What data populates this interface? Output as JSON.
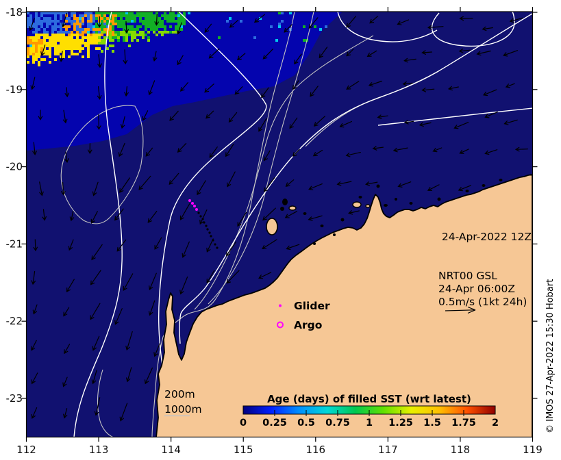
{
  "axes": {
    "x_tick_labels": [
      "112",
      "113",
      "114",
      "115",
      "116",
      "117",
      "118",
      "119"
    ],
    "y_tick_labels": [
      "-18",
      "-19",
      "-20",
      "-21",
      "-22",
      "-23"
    ]
  },
  "annotations": {
    "timestamp": "24-Apr-2022 12Z",
    "nrt_line1": "NRT00 GSL",
    "nrt_line2": "24-Apr 06:00Z",
    "nrt_line3": "0.5m/s (1kt 24h)"
  },
  "marker_legend": {
    "glider_label": "Glider",
    "argo_label": "Argo"
  },
  "depth_legend": {
    "d200": "200m",
    "d1000": "1000m"
  },
  "colorbar": {
    "title": "Age (days) of filled SST (wrt latest)",
    "tick_labels": [
      "0",
      "0.25",
      "0.5",
      "0.75",
      "1",
      "1.25",
      "1.5",
      "1.75",
      "2"
    ]
  },
  "credit": "© IMOS 27-Apr-2022 15:30 Hobart",
  "colors": {
    "land": "#f6c795",
    "ocean_old": "#111170",
    "ocean_recent": "#0404ae",
    "contour_gsl": "#ffffff",
    "contour_bathy": "#c4c4c4",
    "vectors": "#000000",
    "glider_magenta": "#ff00ff",
    "sst_age_palette": [
      "#2d6cdf",
      "#00c8f0",
      "#12b025",
      "#86d900",
      "#ffdf00",
      "#ff9a00"
    ],
    "colorbar_stops": [
      "#000080",
      "#0020ff",
      "#0090ff",
      "#00d8d8",
      "#00c850",
      "#60e000",
      "#e8f000",
      "#ffc000",
      "#ff5000",
      "#900000"
    ]
  }
}
